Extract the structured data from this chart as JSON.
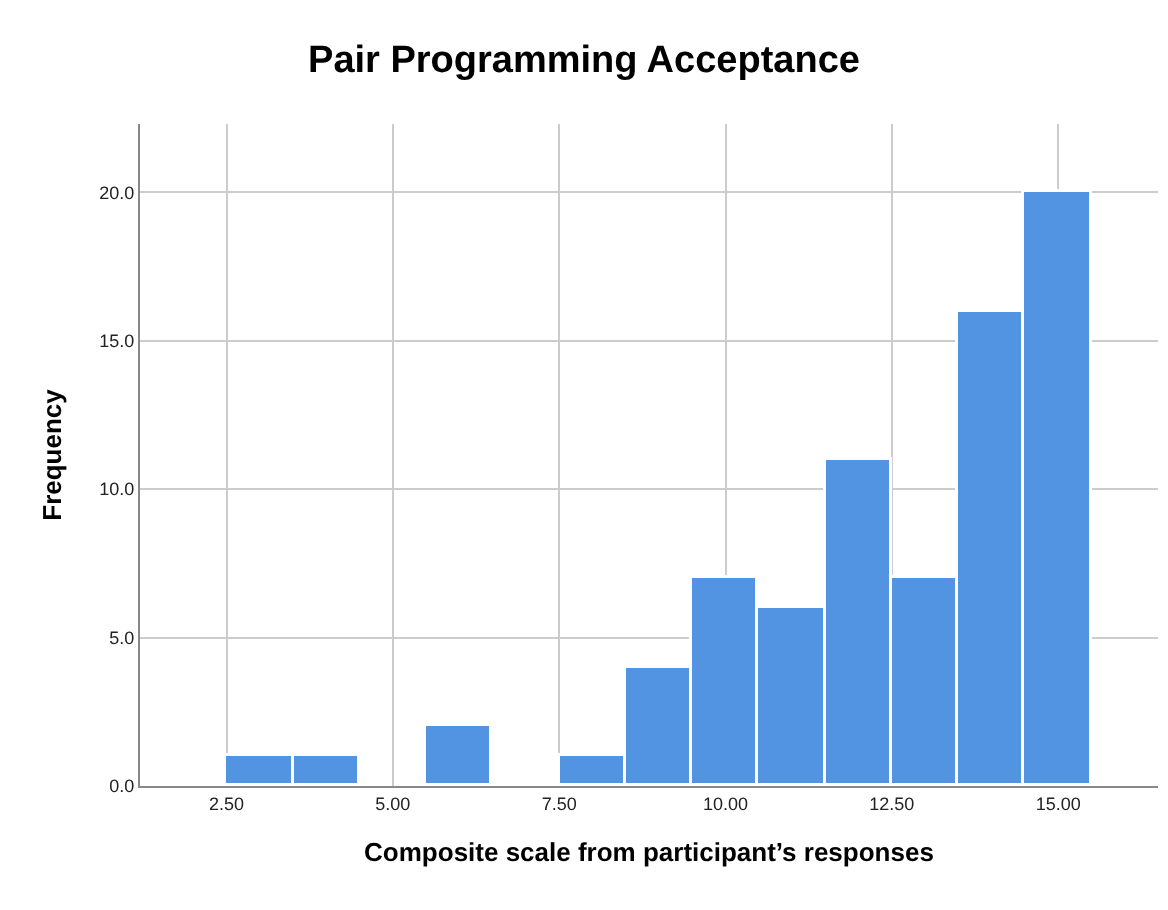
{
  "chart_data": {
    "type": "histogram",
    "title": "Pair Programming Acceptance",
    "xlabel": "Composite scale from participant’s responses",
    "ylabel": "Frequency",
    "bins": [
      2.5,
      3.5,
      4.5,
      5.5,
      6.5,
      7.5,
      8.5,
      9.5,
      10.5,
      11.5,
      12.5,
      13.5,
      14.5,
      15.5
    ],
    "values": [
      1,
      1,
      0,
      2,
      0,
      1,
      4,
      7,
      6,
      11,
      7,
      16,
      20
    ],
    "color": "#5294e2",
    "xlim": [
      1.2,
      16.5
    ],
    "ylim": [
      0,
      22.3
    ],
    "xticks": [
      {
        "value": 2.5,
        "label": "2.50"
      },
      {
        "value": 5,
        "label": "5.00"
      },
      {
        "value": 7.5,
        "label": "7.50"
      },
      {
        "value": 10,
        "label": "10.00"
      },
      {
        "value": 12.5,
        "label": "12.50"
      },
      {
        "value": 15,
        "label": "15.00"
      }
    ],
    "yticks": [
      {
        "value": 0,
        "label": "0.0"
      },
      {
        "value": 5,
        "label": "5.0"
      },
      {
        "value": 10,
        "label": "10.0"
      },
      {
        "value": 15,
        "label": "15.0"
      },
      {
        "value": 20,
        "label": "20.0"
      }
    ],
    "grid": true
  }
}
